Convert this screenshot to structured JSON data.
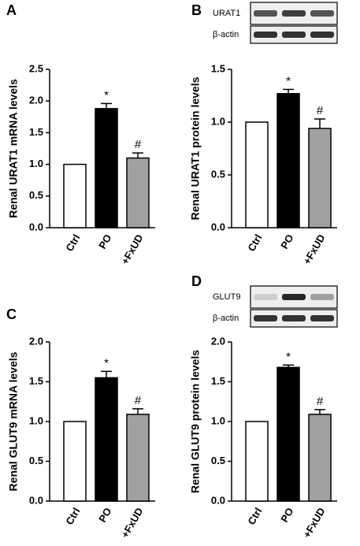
{
  "chart_data": [
    {
      "type": "bar",
      "panel": "A",
      "y_label": "Renal URAT1 mRNA levels",
      "categories": [
        "Ctrl",
        "PO",
        "+FxUD"
      ],
      "values": [
        1.0,
        1.88,
        1.1
      ],
      "errors": [
        null,
        0.08,
        0.08
      ],
      "colors": [
        "#ffffff",
        "#000000",
        "#a0a0a0"
      ],
      "annotations": [
        {
          "text": "*",
          "category": "PO"
        },
        {
          "text": "#",
          "category": "+FxUD"
        }
      ],
      "ylim": [
        0,
        2.5
      ],
      "yticks": [
        {
          "value": 0,
          "label": "0.0"
        },
        0.5,
        {
          "value": 1,
          "label": "1.0"
        },
        1.5,
        {
          "value": 2,
          "label": "2.0"
        },
        2.5
      ]
    },
    {
      "type": "bar",
      "panel": "B",
      "y_label": "Renal URAT1 protein levels",
      "blot_labels": [
        "URAT1",
        "β-actin"
      ],
      "categories": [
        "Ctrl",
        "PO",
        "+FxUD"
      ],
      "values": [
        1.0,
        1.27,
        0.94
      ],
      "errors": [
        null,
        0.04,
        0.09
      ],
      "colors": [
        "#ffffff",
        "#000000",
        "#a0a0a0"
      ],
      "annotations": [
        {
          "text": "*",
          "category": "PO"
        },
        {
          "text": "#",
          "category": "+FxUD"
        }
      ],
      "ylim": [
        0,
        1.5
      ],
      "yticks": [
        {
          "value": 0,
          "label": "0.0"
        },
        0.5,
        {
          "value": 1,
          "label": "1.0"
        },
        1.5
      ]
    },
    {
      "type": "bar",
      "panel": "C",
      "y_label": "Renal GLUT9 mRNA levels",
      "categories": [
        "Ctrl",
        "PO",
        "+FxUD"
      ],
      "values": [
        1.0,
        1.55,
        1.09
      ],
      "errors": [
        null,
        0.08,
        0.07
      ],
      "colors": [
        "#ffffff",
        "#000000",
        "#a0a0a0"
      ],
      "annotations": [
        {
          "text": "*",
          "category": "PO"
        },
        {
          "text": "#",
          "category": "+FxUD"
        }
      ],
      "ylim": [
        0,
        2
      ],
      "yticks": [
        {
          "value": 0,
          "label": "0.0"
        },
        0.5,
        {
          "value": 1,
          "label": "1.0"
        },
        1.5,
        {
          "value": 2,
          "label": "2.0"
        }
      ]
    },
    {
      "type": "bar",
      "panel": "D",
      "y_label": "Renal GLUT9 protein levels",
      "blot_labels": [
        "GLUT9",
        "β-actin"
      ],
      "categories": [
        "Ctrl",
        "PO",
        "+FxUD"
      ],
      "values": [
        1.0,
        1.68,
        1.09
      ],
      "errors": [
        null,
        0.03,
        0.06
      ],
      "colors": [
        "#ffffff",
        "#000000",
        "#a0a0a0"
      ],
      "annotations": [
        {
          "text": "*",
          "category": "PO"
        },
        {
          "text": "#",
          "category": "+FxUD"
        }
      ],
      "ylim": [
        0,
        2
      ],
      "yticks": [
        {
          "value": 0,
          "label": "0.0"
        },
        0.5,
        {
          "value": 1,
          "label": "1.0"
        },
        1.5,
        {
          "value": 2,
          "label": "2.0"
        }
      ]
    }
  ]
}
